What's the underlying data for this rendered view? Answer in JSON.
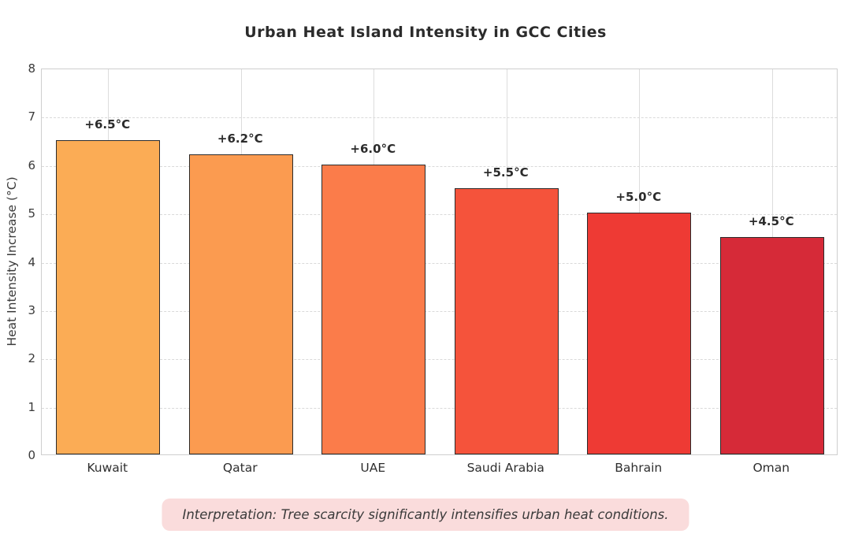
{
  "chart_data": {
    "type": "bar",
    "title": "Urban Heat Island Intensity in GCC Cities",
    "xlabel": "",
    "ylabel": "Heat Intensity Increase (°C)",
    "categories": [
      "Kuwait",
      "Qatar",
      "UAE",
      "Saudi Arabia",
      "Bahrain",
      "Oman"
    ],
    "values": [
      6.5,
      6.2,
      6.0,
      5.5,
      5.0,
      4.5
    ],
    "value_labels": [
      "+6.5°C",
      "+6.2°C",
      "+6.0°C",
      "+5.5°C",
      "+5.0°C",
      "+4.5°C"
    ],
    "bar_colors": [
      "#FBAC55",
      "#FB9B50",
      "#FB7C4A",
      "#F5533B",
      "#EE3A34",
      "#D62A38"
    ],
    "bar_edge_color": "#2b2b2b",
    "ylim": [
      0,
      8
    ],
    "ytick_labels": [
      "0",
      "1",
      "2",
      "3",
      "4",
      "5",
      "6",
      "7",
      "8"
    ],
    "grid": "on",
    "legend_position": "none"
  },
  "annotation": {
    "interpretation_text": "Interpretation: Tree scarcity significantly intensifies urban heat conditions."
  },
  "colors": {
    "background": "#ffffff",
    "title_text": "#2b2b2b",
    "axis_text": "#3a3a3a",
    "grid_line": "#d9d9d9",
    "spine": "#cfcfcf",
    "interpretation_bg": "#fadcdc",
    "interpretation_text": "#3a3a3a"
  }
}
